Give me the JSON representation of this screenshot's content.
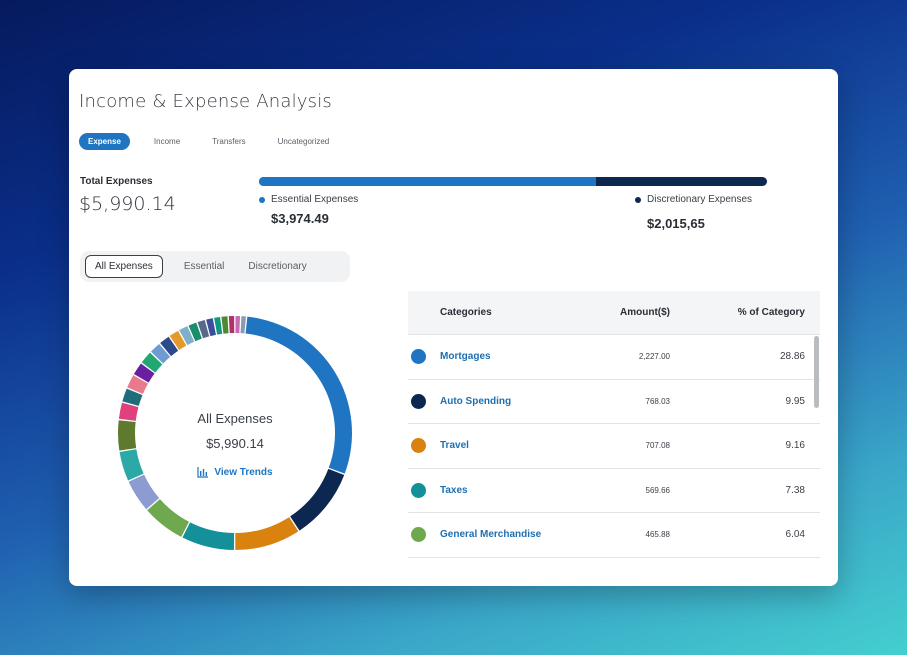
{
  "title": "Income & Expense Analysis",
  "tabs": [
    {
      "label": "Expense",
      "active": true
    },
    {
      "label": "Income",
      "active": false
    },
    {
      "label": "Transfers",
      "active": false
    },
    {
      "label": "Uncategorized",
      "active": false
    }
  ],
  "summary": {
    "total_label": "Total Expenses",
    "total_value": "$5,990.14",
    "essential_label": "Essential Expenses",
    "essential_value": "$3,974.49",
    "discretionary_label": "Discretionary Expenses",
    "discretionary_value": "$2,015,65",
    "essential_share": 0.6635
  },
  "segments": [
    {
      "label": "All Expenses",
      "active": true
    },
    {
      "label": "Essential",
      "active": false
    },
    {
      "label": "Discretionary",
      "active": false
    }
  ],
  "donut": {
    "center_label": "All Expenses",
    "center_value": "$5,990.14",
    "trends_label": "View Trends"
  },
  "table": {
    "headers": [
      "Categories",
      "Amount($)",
      "% of Category"
    ],
    "rows": [
      {
        "category": "Mortgages",
        "amount": "2,227.00",
        "percent": "28.86",
        "color": "#1f75c2"
      },
      {
        "category": "Auto Spending",
        "amount": "768.03",
        "percent": "9.95",
        "color": "#0c2850"
      },
      {
        "category": "Travel",
        "amount": "707.08",
        "percent": "9.16",
        "color": "#d9820e"
      },
      {
        "category": "Taxes",
        "amount": "569.66",
        "percent": "7.38",
        "color": "#13909a"
      },
      {
        "category": "General Merchandise",
        "amount": "465.88",
        "percent": "6.04",
        "color": "#6ea84f"
      }
    ]
  },
  "chart_data": {
    "type": "pie",
    "title": "",
    "slices": [
      {
        "label": "Mortgages",
        "value": 28.86,
        "color": "#1f75c2"
      },
      {
        "label": "Auto Spending",
        "value": 9.95,
        "color": "#0c2850"
      },
      {
        "label": "Travel",
        "value": 9.16,
        "color": "#d9820e"
      },
      {
        "label": "Taxes",
        "value": 7.38,
        "color": "#13909a"
      },
      {
        "label": "General Merchandise",
        "value": 6.04,
        "color": "#6ea84f"
      },
      {
        "label": "",
        "value": 4.6,
        "color": "#8c9bd0"
      },
      {
        "label": "",
        "value": 4.2,
        "color": "#2aa9a6"
      },
      {
        "label": "",
        "value": 4.3,
        "color": "#5f7a2e"
      },
      {
        "label": "",
        "value": 2.4,
        "color": "#e0407c"
      },
      {
        "label": "",
        "value": 2.0,
        "color": "#1c6f7a"
      },
      {
        "label": "",
        "value": 2.0,
        "color": "#e87a8c"
      },
      {
        "label": "",
        "value": 1.9,
        "color": "#6a1fa0"
      },
      {
        "label": "",
        "value": 1.9,
        "color": "#21a872"
      },
      {
        "label": "",
        "value": 1.7,
        "color": "#6e9bd1"
      },
      {
        "label": "",
        "value": 1.6,
        "color": "#2b4a8c"
      },
      {
        "label": "",
        "value": 1.5,
        "color": "#e39a2a"
      },
      {
        "label": "",
        "value": 1.4,
        "color": "#7fb0c9"
      },
      {
        "label": "",
        "value": 1.3,
        "color": "#1a8d6b"
      },
      {
        "label": "",
        "value": 1.2,
        "color": "#586a8a"
      },
      {
        "label": "",
        "value": 1.1,
        "color": "#3c4e9a"
      },
      {
        "label": "",
        "value": 1.0,
        "color": "#0f9a80"
      },
      {
        "label": "",
        "value": 1.0,
        "color": "#4d8a2e"
      },
      {
        "label": "",
        "value": 0.9,
        "color": "#b0306a"
      },
      {
        "label": "",
        "value": 0.8,
        "color": "#c96bb0"
      },
      {
        "label": "",
        "value": 0.8,
        "color": "#8a9ab5"
      }
    ]
  }
}
